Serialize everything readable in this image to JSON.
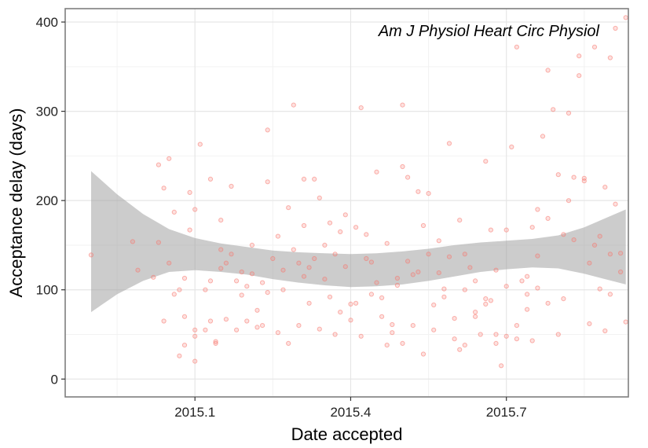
{
  "chart_data": {
    "type": "scatter",
    "annotation": "Am J Physiol Heart Circ Physiol",
    "xlabel": "Date accepted",
    "ylabel": "Acceptance delay (days)",
    "xlim": [
      2014.85,
      2015.935
    ],
    "ylim": [
      -20,
      415
    ],
    "x_ticks": [
      2015.1,
      2015.4,
      2015.7
    ],
    "x_tick_labels": [
      "2015.1",
      "2015.4",
      "2015.7"
    ],
    "y_ticks": [
      0,
      100,
      200,
      300,
      400
    ],
    "y_tick_labels": [
      "0",
      "100",
      "200",
      "300",
      "400"
    ],
    "grid": true,
    "point_color": "#f8766d",
    "ribbon_color": "#999999",
    "points": [
      [
        2014.9,
        139
      ],
      [
        2014.98,
        154
      ],
      [
        2014.99,
        122
      ],
      [
        2015.02,
        114
      ],
      [
        2015.03,
        153
      ],
      [
        2015.03,
        240
      ],
      [
        2015.04,
        214
      ],
      [
        2015.04,
        65
      ],
      [
        2015.05,
        247
      ],
      [
        2015.06,
        187
      ],
      [
        2015.07,
        26
      ],
      [
        2015.07,
        100
      ],
      [
        2015.08,
        38
      ],
      [
        2015.08,
        113
      ],
      [
        2015.09,
        167
      ],
      [
        2015.09,
        209
      ],
      [
        2015.1,
        20
      ],
      [
        2015.1,
        55
      ],
      [
        2015.1,
        190
      ],
      [
        2015.11,
        263
      ],
      [
        2015.12,
        100
      ],
      [
        2015.13,
        224
      ],
      [
        2015.13,
        65
      ],
      [
        2015.14,
        40
      ],
      [
        2015.15,
        145
      ],
      [
        2015.15,
        178
      ],
      [
        2015.16,
        130
      ],
      [
        2015.17,
        216
      ],
      [
        2015.18,
        110
      ],
      [
        2015.19,
        94
      ],
      [
        2015.2,
        65
      ],
      [
        2015.21,
        118
      ],
      [
        2015.22,
        77
      ],
      [
        2015.23,
        60
      ],
      [
        2015.24,
        279
      ],
      [
        2015.24,
        221
      ],
      [
        2015.26,
        160
      ],
      [
        2015.27,
        100
      ],
      [
        2015.28,
        192
      ],
      [
        2015.29,
        307
      ],
      [
        2015.3,
        130
      ],
      [
        2015.31,
        224
      ],
      [
        2015.31,
        172
      ],
      [
        2015.32,
        125
      ],
      [
        2015.33,
        224
      ],
      [
        2015.34,
        203
      ],
      [
        2015.35,
        150
      ],
      [
        2015.36,
        175
      ],
      [
        2015.37,
        50
      ],
      [
        2015.38,
        165
      ],
      [
        2015.39,
        184
      ],
      [
        2015.4,
        84
      ],
      [
        2015.41,
        85
      ],
      [
        2015.42,
        304
      ],
      [
        2015.43,
        162
      ],
      [
        2015.44,
        131
      ],
      [
        2015.45,
        232
      ],
      [
        2015.46,
        70
      ],
      [
        2015.47,
        38
      ],
      [
        2015.48,
        61
      ],
      [
        2015.49,
        113
      ],
      [
        2015.5,
        307
      ],
      [
        2015.5,
        238
      ],
      [
        2015.51,
        226
      ],
      [
        2015.52,
        117
      ],
      [
        2015.53,
        210
      ],
      [
        2015.54,
        172
      ],
      [
        2015.55,
        208
      ],
      [
        2015.56,
        83
      ],
      [
        2015.57,
        155
      ],
      [
        2015.58,
        101
      ],
      [
        2015.59,
        264
      ],
      [
        2015.6,
        68
      ],
      [
        2015.61,
        33
      ],
      [
        2015.62,
        140
      ],
      [
        2015.63,
        125
      ],
      [
        2015.64,
        110
      ],
      [
        2015.65,
        50
      ],
      [
        2015.66,
        244
      ],
      [
        2015.67,
        167
      ],
      [
        2015.67,
        88
      ],
      [
        2015.68,
        50
      ],
      [
        2015.69,
        15
      ],
      [
        2015.7,
        167
      ],
      [
        2015.71,
        260
      ],
      [
        2015.72,
        372
      ],
      [
        2015.73,
        110
      ],
      [
        2015.74,
        78
      ],
      [
        2015.75,
        43
      ],
      [
        2015.76,
        138
      ],
      [
        2015.77,
        272
      ],
      [
        2015.78,
        346
      ],
      [
        2015.79,
        302
      ],
      [
        2015.8,
        229
      ],
      [
        2015.81,
        162
      ],
      [
        2015.82,
        298
      ],
      [
        2015.83,
        226
      ],
      [
        2015.84,
        362
      ],
      [
        2015.84,
        340
      ],
      [
        2015.85,
        225
      ],
      [
        2015.86,
        62
      ],
      [
        2015.87,
        372
      ],
      [
        2015.87,
        150
      ],
      [
        2015.88,
        101
      ],
      [
        2015.89,
        54
      ],
      [
        2015.9,
        360
      ],
      [
        2015.9,
        140
      ],
      [
        2015.91,
        393
      ],
      [
        2015.92,
        141
      ],
      [
        2015.93,
        405
      ],
      [
        2015.81,
        90
      ],
      [
        2015.78,
        85
      ],
      [
        2015.76,
        102
      ],
      [
        2015.74,
        95
      ],
      [
        2015.72,
        60
      ],
      [
        2015.7,
        48
      ],
      [
        2015.68,
        40
      ],
      [
        2015.66,
        90
      ],
      [
        2015.64,
        75
      ],
      [
        2015.62,
        100
      ],
      [
        2015.6,
        45
      ],
      [
        2015.58,
        92
      ],
      [
        2015.56,
        55
      ],
      [
        2015.54,
        28
      ],
      [
        2015.52,
        60
      ],
      [
        2015.5,
        40
      ],
      [
        2015.48,
        52
      ],
      [
        2015.46,
        91
      ],
      [
        2015.44,
        95
      ],
      [
        2015.42,
        48
      ],
      [
        2015.4,
        66
      ],
      [
        2015.38,
        75
      ],
      [
        2015.36,
        92
      ],
      [
        2015.34,
        56
      ],
      [
        2015.32,
        85
      ],
      [
        2015.3,
        60
      ],
      [
        2015.28,
        40
      ],
      [
        2015.26,
        52
      ],
      [
        2015.24,
        97
      ],
      [
        2015.22,
        58
      ],
      [
        2015.2,
        104
      ],
      [
        2015.18,
        55
      ],
      [
        2015.16,
        67
      ],
      [
        2015.14,
        42
      ],
      [
        2015.12,
        55
      ],
      [
        2015.1,
        48
      ],
      [
        2015.08,
        70
      ],
      [
        2015.06,
        95
      ],
      [
        2015.05,
        130
      ],
      [
        2015.62,
        38
      ],
      [
        2015.64,
        70
      ],
      [
        2015.66,
        84
      ],
      [
        2015.68,
        122
      ],
      [
        2015.7,
        104
      ],
      [
        2015.72,
        45
      ],
      [
        2015.74,
        115
      ],
      [
        2015.75,
        170
      ],
      [
        2015.76,
        190
      ],
      [
        2015.78,
        180
      ],
      [
        2015.8,
        50
      ],
      [
        2015.82,
        200
      ],
      [
        2015.83,
        156
      ],
      [
        2015.85,
        222
      ],
      [
        2015.86,
        130
      ],
      [
        2015.88,
        160
      ],
      [
        2015.89,
        215
      ],
      [
        2015.9,
        95
      ],
      [
        2015.91,
        196
      ],
      [
        2015.92,
        120
      ],
      [
        2015.93,
        64
      ],
      [
        2015.61,
        178
      ],
      [
        2015.59,
        137
      ],
      [
        2015.57,
        119
      ],
      [
        2015.55,
        140
      ],
      [
        2015.53,
        120
      ],
      [
        2015.51,
        132
      ],
      [
        2015.49,
        105
      ],
      [
        2015.47,
        152
      ],
      [
        2015.45,
        108
      ],
      [
        2015.43,
        135
      ],
      [
        2015.41,
        170
      ],
      [
        2015.39,
        126
      ],
      [
        2015.37,
        140
      ],
      [
        2015.35,
        112
      ],
      [
        2015.33,
        135
      ],
      [
        2015.31,
        115
      ],
      [
        2015.29,
        145
      ],
      [
        2015.27,
        122
      ],
      [
        2015.25,
        135
      ],
      [
        2015.23,
        108
      ],
      [
        2015.21,
        150
      ],
      [
        2015.19,
        120
      ],
      [
        2015.17,
        140
      ],
      [
        2015.15,
        124
      ],
      [
        2015.13,
        110
      ]
    ],
    "smooth": {
      "x": [
        2014.9,
        2014.95,
        2015.0,
        2015.05,
        2015.1,
        2015.15,
        2015.2,
        2015.25,
        2015.3,
        2015.35,
        2015.4,
        2015.45,
        2015.5,
        2015.55,
        2015.6,
        2015.65,
        2015.7,
        2015.75,
        2015.8,
        2015.85,
        2015.93
      ],
      "ymin": [
        75,
        95,
        110,
        120,
        122,
        120,
        117,
        112,
        108,
        105,
        103,
        104,
        106,
        110,
        115,
        120,
        123,
        125,
        124,
        118,
        106
      ],
      "ymax": [
        233,
        207,
        185,
        168,
        158,
        152,
        148,
        144,
        142,
        141,
        140,
        141,
        143,
        146,
        150,
        153,
        155,
        157,
        161,
        170,
        190
      ]
    }
  }
}
